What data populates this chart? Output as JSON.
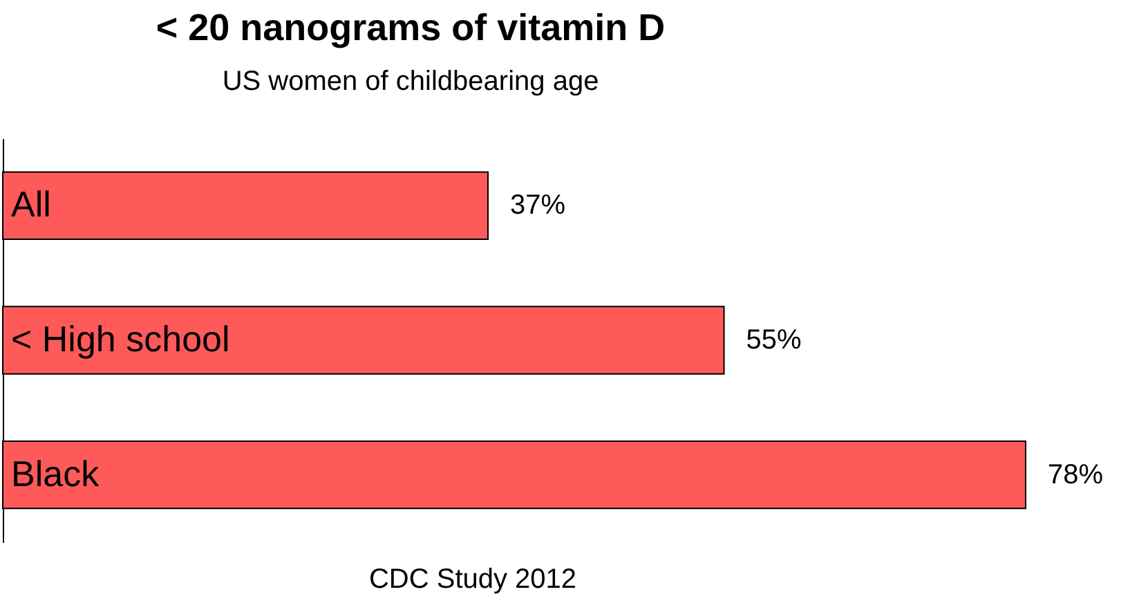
{
  "chart_data": {
    "type": "bar",
    "orientation": "horizontal",
    "title": "< 20 nanograms of vitamin D",
    "subtitle": "US women of childbearing age",
    "categories": [
      "All",
      "< High school",
      "Black"
    ],
    "series": [
      {
        "color": "#ff5a5a",
        "values": [
          37,
          55,
          78
        ],
        "value_labels": [
          "37%",
          "55%",
          "78%"
        ]
      }
    ],
    "annotations": [
      "CDC Study 2012"
    ]
  }
}
